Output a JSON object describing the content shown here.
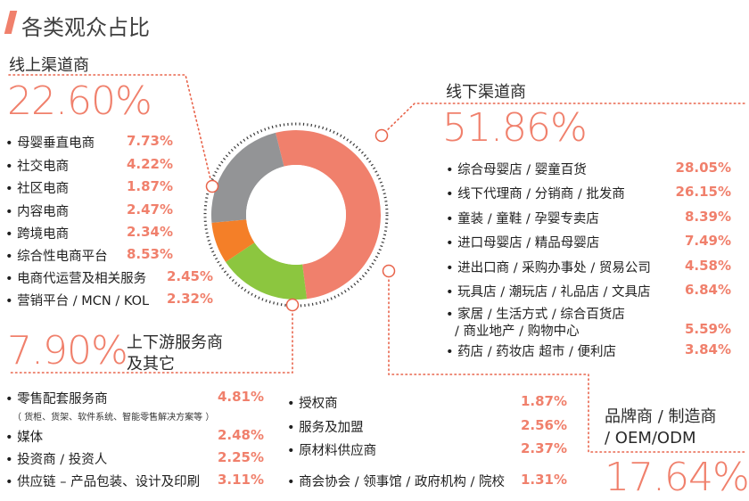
{
  "page_title": "各类观众占比",
  "colors": {
    "accent": "#f0806c",
    "gray": "#939496",
    "orange": "#f47f28",
    "green": "#8cc63f",
    "dots": "#e8634a"
  },
  "online": {
    "label": "线上渠道商",
    "total": "22.60%",
    "items": [
      {
        "label": "• 母婴垂直电商",
        "value": "7.73%"
      },
      {
        "label": "• 社交电商",
        "value": "4.22%"
      },
      {
        "label": "• 社区电商",
        "value": "1.87%"
      },
      {
        "label": "• 内容电商",
        "value": "2.47%"
      },
      {
        "label": "• 跨境电商",
        "value": "2.34%"
      },
      {
        "label": "• 综合性电商平台",
        "value": "8.53%"
      },
      {
        "label": "• 电商代运营及相关服务",
        "value": "2.45%"
      },
      {
        "label": "• 营销平台 / MCN / KOL",
        "value": "2.32%"
      }
    ]
  },
  "offline": {
    "label": "线下渠道商",
    "total": "51.86%",
    "items": [
      {
        "label": "• 综合母婴店 / 婴童百货",
        "value": "28.05%"
      },
      {
        "label": "• 线下代理商 / 分销商 / 批发商",
        "value": "26.15%"
      },
      {
        "label": "• 童装 / 童鞋 / 孕婴专卖店",
        "value": "8.39%"
      },
      {
        "label": "• 进口母婴店 / 精品母婴店",
        "value": "7.49%"
      },
      {
        "label": "• 进出口商 / 采购办事处 / 贸易公司",
        "value": "4.58%"
      },
      {
        "label": "• 玩具店 / 潮玩店 / 礼品店 / 文具店",
        "value": "6.84%"
      },
      {
        "label": "• 家居 / 生活方式 / 综合百货店",
        "label2": "/ 商业地产 / 购物中心",
        "value": "5.59%"
      },
      {
        "label": "• 药店 / 药妆店 超市 / 便利店",
        "value": "3.84%"
      }
    ]
  },
  "services": {
    "total": "7.90%",
    "label_line1": "上下游服务商",
    "label_line2": "及其它",
    "col1": [
      {
        "label": "• 零售配套服务商",
        "value": "4.81%",
        "note": "（ 货柜、货架、软件系统、智能零售解决方案等 ）"
      },
      {
        "label": "• 媒体",
        "value": "2.48%"
      },
      {
        "label": "• 投资商 / 投资人",
        "value": "2.25%"
      },
      {
        "label": "• 供应链 – 产品包装、设计及印刷",
        "value": "3.11%"
      }
    ],
    "col2": [
      {
        "label": "• 授权商",
        "value": "1.87%"
      },
      {
        "label": "• 服务及加盟",
        "value": "2.56%"
      },
      {
        "label": "• 原材料供应商",
        "value": "2.37%"
      },
      {
        "label": "• 商会协会 / 领事馆 / 政府机构 / 院校",
        "value": "1.31%"
      }
    ]
  },
  "brands": {
    "label_line1": "品牌商 / 制造商",
    "label_line2": "/ OEM/ODM",
    "total": "17.64%"
  },
  "chart_data": {
    "type": "pie",
    "donut": true,
    "categories": [
      "线下渠道商",
      "品牌商 / 制造商 / OEM/ODM",
      "上下游服务商及其它",
      "线上渠道商"
    ],
    "values": [
      51.86,
      17.64,
      7.9,
      22.6
    ],
    "colors": [
      "#f0806c",
      "#8cc63f",
      "#f47f28",
      "#939496"
    ]
  }
}
